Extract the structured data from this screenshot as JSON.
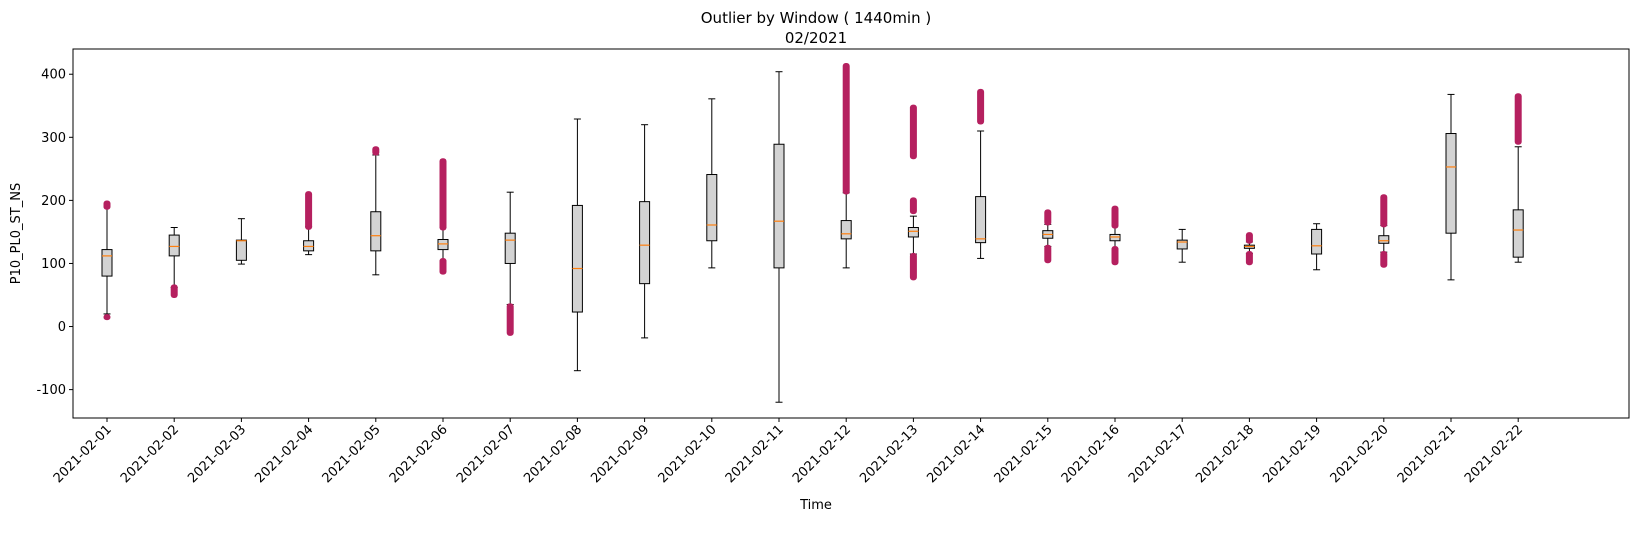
{
  "chart_data": {
    "type": "box",
    "title": "Outlier by Window ( 1440min )",
    "subtitle": "02/2021",
    "xlabel": "Time",
    "ylabel": "P10_PL0_ST_NS",
    "ylim": [
      -145,
      440
    ],
    "yticks": [
      -100,
      0,
      100,
      200,
      300,
      400
    ],
    "grid": false,
    "colors": {
      "box_fill": "#d3d3d3",
      "median": "#ff7f0e",
      "outlier": "#b5205f",
      "axes": "#000000"
    },
    "categories": [
      "2021-02-01",
      "2021-02-02",
      "2021-02-03",
      "2021-02-04",
      "2021-02-05",
      "2021-02-06",
      "2021-02-07",
      "2021-02-08",
      "2021-02-09",
      "2021-02-10",
      "2021-02-11",
      "2021-02-12",
      "2021-02-13",
      "2021-02-14",
      "2021-02-15",
      "2021-02-16",
      "2021-02-17",
      "2021-02-18",
      "2021-02-19",
      "2021-02-20",
      "2021-02-21",
      "2021-02-22"
    ],
    "boxes": [
      {
        "whislo": 20,
        "q1": 80,
        "med": 112,
        "q3": 122,
        "whishi": 190,
        "outliers": [
          [
            15,
            15
          ],
          [
            190,
            195
          ]
        ]
      },
      {
        "whislo": 62,
        "q1": 112,
        "med": 127,
        "q3": 145,
        "whishi": 157,
        "outliers": [
          [
            50,
            62
          ]
        ]
      },
      {
        "whislo": 99,
        "q1": 105,
        "med": 136,
        "q3": 137,
        "whishi": 171,
        "outliers": []
      },
      {
        "whislo": 114,
        "q1": 120,
        "med": 127,
        "q3": 136,
        "whishi": 158,
        "outliers": [
          [
            158,
            210
          ]
        ]
      },
      {
        "whislo": 82,
        "q1": 120,
        "med": 144,
        "q3": 182,
        "whishi": 272,
        "outliers": [
          [
            276,
            281
          ]
        ]
      },
      {
        "whislo": 104,
        "q1": 122,
        "med": 131,
        "q3": 138,
        "whishi": 157,
        "outliers": [
          [
            87,
            104
          ],
          [
            157,
            262
          ]
        ]
      },
      {
        "whislo": 35,
        "q1": 100,
        "med": 137,
        "q3": 148,
        "whishi": 213,
        "outliers": [
          [
            -10,
            32
          ]
        ]
      },
      {
        "whislo": -70,
        "q1": 23,
        "med": 92,
        "q3": 192,
        "whishi": 329,
        "outliers": []
      },
      {
        "whislo": -18,
        "q1": 68,
        "med": 129,
        "q3": 198,
        "whishi": 320,
        "outliers": []
      },
      {
        "whislo": 93,
        "q1": 136,
        "med": 161,
        "q3": 241,
        "whishi": 361,
        "outliers": []
      },
      {
        "whislo": -120,
        "q1": 93,
        "med": 167,
        "q3": 289,
        "whishi": 404,
        "outliers": []
      },
      {
        "whislo": 93,
        "q1": 139,
        "med": 147,
        "q3": 168,
        "whishi": 212,
        "outliers": [
          [
            214,
            413
          ]
        ]
      },
      {
        "whislo": 115,
        "q1": 142,
        "med": 151,
        "q3": 157,
        "whishi": 175,
        "outliers": [
          [
            78,
            112
          ],
          [
            183,
            200
          ],
          [
            270,
            347
          ]
        ]
      },
      {
        "whislo": 108,
        "q1": 133,
        "med": 139,
        "q3": 206,
        "whishi": 310,
        "outliers": [
          [
            325,
            372
          ]
        ]
      },
      {
        "whislo": 127,
        "q1": 140,
        "med": 146,
        "q3": 152,
        "whishi": 162,
        "outliers": [
          [
            105,
            125
          ],
          [
            165,
            181
          ]
        ]
      },
      {
        "whislo": 123,
        "q1": 136,
        "med": 142,
        "q3": 146,
        "whishi": 160,
        "outliers": [
          [
            102,
            123
          ],
          [
            160,
            187
          ]
        ]
      },
      {
        "whislo": 102,
        "q1": 123,
        "med": 134,
        "q3": 137,
        "whishi": 154,
        "outliers": []
      },
      {
        "whislo": 116,
        "q1": 124,
        "med": 127,
        "q3": 129,
        "whishi": 134,
        "outliers": [
          [
            102,
            115
          ],
          [
            136,
            145
          ]
        ]
      },
      {
        "whislo": 90,
        "q1": 115,
        "med": 128,
        "q3": 154,
        "whishi": 163,
        "outliers": []
      },
      {
        "whislo": 118,
        "q1": 132,
        "med": 136,
        "q3": 144,
        "whishi": 160,
        "outliers": [
          [
            98,
            115
          ],
          [
            162,
            205
          ]
        ]
      },
      {
        "whislo": 74,
        "q1": 148,
        "med": 253,
        "q3": 306,
        "whishi": 368,
        "outliers": []
      },
      {
        "whislo": 102,
        "q1": 110,
        "med": 153,
        "q3": 185,
        "whishi": 285,
        "outliers": [
          [
            293,
            365
          ]
        ]
      }
    ]
  }
}
